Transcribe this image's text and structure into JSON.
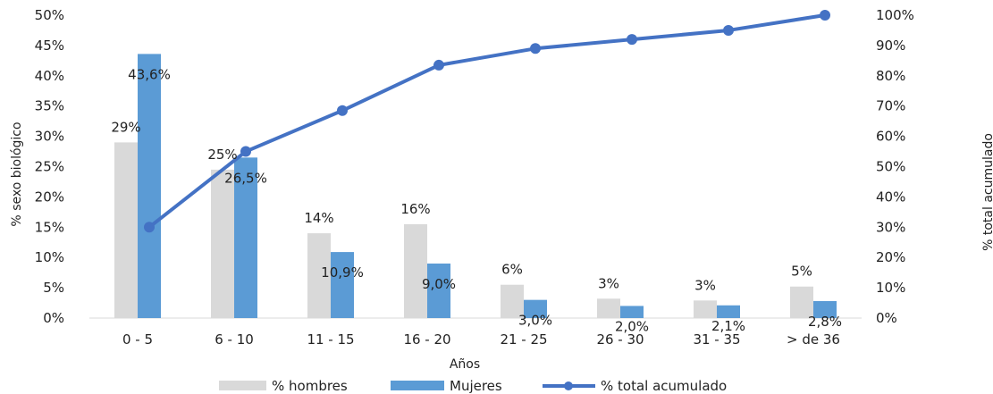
{
  "chart_data": {
    "type": "bar",
    "categories": [
      "0 - 5",
      "6 - 10",
      "11 - 15",
      "16 - 20",
      "21 - 25",
      "26 - 30",
      "31 - 35",
      "> de 36"
    ],
    "series": [
      {
        "name": "% hombres",
        "type": "bar",
        "axis": "left",
        "color": "#d9d9d9",
        "values": [
          29,
          24.5,
          14,
          15.5,
          5.5,
          3.2,
          2.9,
          5.2
        ],
        "labels": [
          "29%",
          "25%",
          "14%",
          "16%",
          "6%",
          "3%",
          "3%",
          "5%"
        ]
      },
      {
        "name": "Mujeres",
        "type": "bar",
        "axis": "left",
        "color": "#5b9bd5",
        "values": [
          43.6,
          26.5,
          10.9,
          9.0,
          3.0,
          2.0,
          2.1,
          2.8
        ],
        "labels": [
          "43,6%",
          "26,5%",
          "10,9%",
          "9,0%",
          "3,0%",
          "2,0%",
          "2,1%",
          "2,8%"
        ]
      },
      {
        "name": "% total acumulado",
        "type": "line",
        "axis": "right",
        "color": "#4472c4",
        "values": [
          30,
          55,
          68.5,
          83.5,
          89,
          92,
          95,
          100
        ]
      }
    ],
    "left_axis": {
      "label": "% sexo biológico",
      "range": [
        0,
        50
      ],
      "ticks": [
        "0%",
        "5%",
        "10%",
        "15%",
        "20%",
        "25%",
        "30%",
        "35%",
        "40%",
        "45%",
        "50%"
      ]
    },
    "right_axis": {
      "label": "% total acumulado",
      "range": [
        0,
        100
      ],
      "ticks": [
        "0%",
        "10%",
        "20%",
        "30%",
        "40%",
        "50%",
        "60%",
        "70%",
        "80%",
        "90%",
        "100%"
      ]
    },
    "xlabel": "Años",
    "grid": false,
    "legend_position": "bottom"
  }
}
